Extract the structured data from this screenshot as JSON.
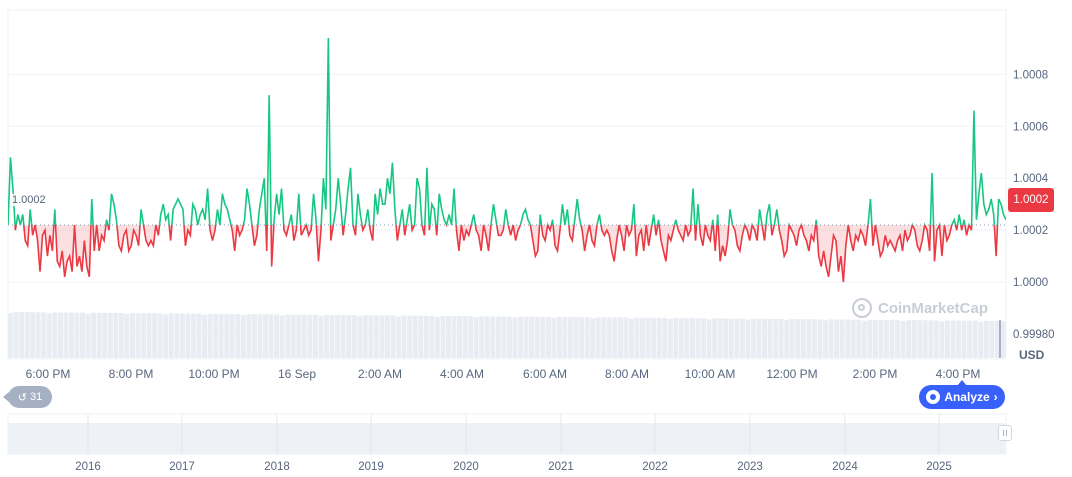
{
  "chart_data": {
    "type": "line",
    "currency": "USD",
    "current_price_label": "1.0002",
    "reference_line_label": "1.0002",
    "reference_value": 1.00022,
    "ylim": [
      0.9998,
      1.00094
    ],
    "y_ticks": [
      {
        "value": 1.0008,
        "label": "1.0008"
      },
      {
        "value": 1.0006,
        "label": "1.0006"
      },
      {
        "value": 1.0004,
        "label": "1.0004"
      },
      {
        "value": 1.0002,
        "label": "1.0002"
      },
      {
        "value": 1.0,
        "label": "1.0000"
      },
      {
        "value": 0.9998,
        "label": "0.99980"
      }
    ],
    "x_tick_labels": [
      "6:00 PM",
      "8:00 PM",
      "10:00 PM",
      "16 Sep",
      "2:00 AM",
      "4:00 AM",
      "6:00 AM",
      "8:00 AM",
      "10:00 AM",
      "12:00 PM",
      "2:00 PM",
      "4:00 PM"
    ],
    "above_color": "#16c784",
    "below_color": "#ea3943",
    "values": [
      1.00022,
      1.00048,
      1.00036,
      1.0002,
      1.00026,
      1.00022,
      1.00026,
      1.00016,
      1.00014,
      1.00028,
      1.00018,
      1.00022,
      1.00016,
      1.00004,
      1.00018,
      1.0002,
      1.0001,
      1.00018,
      1.00012,
      1.00028,
      1.00008,
      1.00006,
      1.00012,
      1.00002,
      1.00008,
      1.0001,
      1.00004,
      1.00022,
      1.00006,
      1.0001,
      1.00004,
      1.00016,
      1.00006,
      1.00002,
      1.00032,
      1.00012,
      1.00022,
      1.00012,
      1.00018,
      1.00016,
      1.00024,
      1.0002,
      1.00034,
      1.0003,
      1.00024,
      1.00014,
      1.00012,
      1.00018,
      1.0002,
      1.00012,
      1.00014,
      1.0002,
      1.00018,
      1.00014,
      1.00028,
      1.00022,
      1.00016,
      1.00014,
      1.00016,
      1.00014,
      1.00022,
      1.00018,
      1.00026,
      1.0003,
      1.00024,
      1.00026,
      1.00016,
      1.00028,
      1.0003,
      1.00032,
      1.0003,
      1.00028,
      1.00014,
      1.0002,
      1.00018,
      1.0003,
      1.00028,
      1.00022,
      1.00026,
      1.00028,
      1.00024,
      1.00036,
      1.0002,
      1.00016,
      1.0002,
      1.00028,
      1.00022,
      1.00034,
      1.0003,
      1.00028,
      1.00024,
      1.0002,
      1.00012,
      1.00022,
      1.00018,
      1.0002,
      1.00024,
      1.00036,
      1.0003,
      1.00022,
      1.00014,
      1.00018,
      1.00028,
      1.00034,
      1.0004,
      1.00012,
      1.00072,
      1.00006,
      1.00024,
      1.00034,
      1.00026,
      1.00036,
      1.0002,
      1.00018,
      1.00022,
      1.00026,
      1.00016,
      1.0002,
      1.00034,
      1.00018,
      1.0002,
      1.00022,
      1.00018,
      1.0002,
      1.00034,
      1.00024,
      1.00008,
      1.0002,
      1.0004,
      1.00028,
      1.00094,
      1.00016,
      1.00022,
      1.00028,
      1.0004,
      1.0003,
      1.00018,
      1.00026,
      1.00036,
      1.00044,
      1.00022,
      1.00018,
      1.00034,
      1.00026,
      1.0002,
      1.00022,
      1.00028,
      1.0002,
      1.00016,
      1.00034,
      1.00026,
      1.00036,
      1.0003,
      1.0003,
      1.0004,
      1.00034,
      1.00046,
      1.00028,
      1.00016,
      1.00022,
      1.00028,
      1.00018,
      1.00024,
      1.0003,
      1.0002,
      1.00022,
      1.0004,
      1.00036,
      1.00022,
      1.00018,
      1.00044,
      1.0002,
      1.0003,
      1.00028,
      1.00018,
      1.00034,
      1.00028,
      1.00024,
      1.00022,
      1.00026,
      1.00022,
      1.00036,
      1.0002,
      1.00012,
      1.00022,
      1.00016,
      1.0002,
      1.00018,
      1.00022,
      1.00026,
      1.0002,
      1.00018,
      1.00012,
      1.00022,
      1.00018,
      1.00012,
      1.00022,
      1.0003,
      1.00024,
      1.00018,
      1.00018,
      1.0002,
      1.00028,
      1.00022,
      1.00018,
      1.00022,
      1.00016,
      1.0002,
      1.00022,
      1.00026,
      1.00028,
      1.00024,
      1.00022,
      1.00016,
      1.0001,
      1.00012,
      1.00026,
      1.00018,
      1.00016,
      1.00022,
      1.0002,
      1.00024,
      1.00014,
      1.00012,
      1.0002,
      1.0003,
      1.00022,
      1.00028,
      1.00018,
      1.00016,
      1.00024,
      1.00032,
      1.00024,
      1.0002,
      1.00012,
      1.00018,
      1.00022,
      1.00016,
      1.00014,
      1.00022,
      1.00026,
      1.0002,
      1.00018,
      1.0002,
      1.00018,
      1.00012,
      1.00008,
      1.00016,
      1.00022,
      1.00018,
      1.00012,
      1.00022,
      1.00018,
      1.0002,
      1.0003,
      1.0001,
      1.00018,
      1.0002,
      1.00012,
      1.00022,
      1.00014,
      1.0002,
      1.00026,
      1.00018,
      1.00024,
      1.00016,
      1.00012,
      1.00008,
      1.00018,
      1.00016,
      1.0002,
      1.00024,
      1.0002,
      1.00018,
      1.00016,
      1.00022,
      1.00018,
      1.0002,
      1.00036,
      1.00016,
      1.0003,
      1.00018,
      1.00014,
      1.00022,
      1.00018,
      1.00016,
      1.00024,
      1.00012,
      1.00026,
      1.00008,
      1.00014,
      1.0001,
      1.00016,
      1.00028,
      1.00022,
      1.0002,
      1.00014,
      1.00012,
      1.00018,
      1.00022,
      1.0002,
      1.00016,
      1.00022,
      1.0002,
      1.00016,
      1.00028,
      1.00022,
      1.00016,
      1.00026,
      1.0003,
      1.00018,
      1.00022,
      1.00028,
      1.0002,
      1.00016,
      1.0001,
      1.00012,
      1.00022,
      1.0002,
      1.00018,
      1.00014,
      1.0002,
      1.00022,
      1.00018,
      1.00016,
      1.00012,
      1.00018,
      1.00016,
      1.00024,
      1.0001,
      1.00006,
      1.00012,
      1.00006,
      1.00002,
      1.0001,
      1.00018,
      1.00016,
      1.00004,
      1.0001,
      1.0,
      1.00014,
      1.00022,
      1.00016,
      1.00012,
      1.00018,
      1.00016,
      1.0002,
      1.00018,
      1.00014,
      1.00022,
      1.00032,
      1.00014,
      1.00022,
      1.00016,
      1.0001,
      1.00012,
      1.00018,
      1.00014,
      1.00016,
      1.00014,
      1.00012,
      1.00016,
      1.00018,
      1.00012,
      1.0002,
      1.00016,
      1.00018,
      1.00022,
      1.0002,
      1.00014,
      1.00012,
      1.00016,
      1.00022,
      1.0002,
      1.00012,
      1.00042,
      1.00008,
      1.0002,
      1.00022,
      1.0001,
      1.00022,
      1.00016,
      1.00018,
      1.00022,
      1.00024,
      1.0002,
      1.00026,
      1.0002,
      1.00024,
      1.00018,
      1.00022,
      1.0002,
      1.00066,
      1.00024,
      1.00034,
      1.00042,
      1.0003,
      1.00026,
      1.00028,
      1.00032,
      1.00026,
      1.0001,
      1.00032,
      1.0003,
      1.00026,
      1.00024
    ]
  },
  "volume_bars": {
    "count": 180
  },
  "navigator": {
    "year_labels": [
      "2016",
      "2017",
      "2018",
      "2019",
      "2020",
      "2021",
      "2022",
      "2023",
      "2024",
      "2025"
    ]
  },
  "ui": {
    "currency_label": "USD",
    "price_badge": "1.0002",
    "history_count": "31",
    "analyze_label": "Analyze",
    "watermark_text": "CoinMarketCap"
  },
  "colors": {
    "up": "#16c784",
    "down": "#ea3943",
    "accent": "#3861fb",
    "grid": "#eff2f5"
  }
}
